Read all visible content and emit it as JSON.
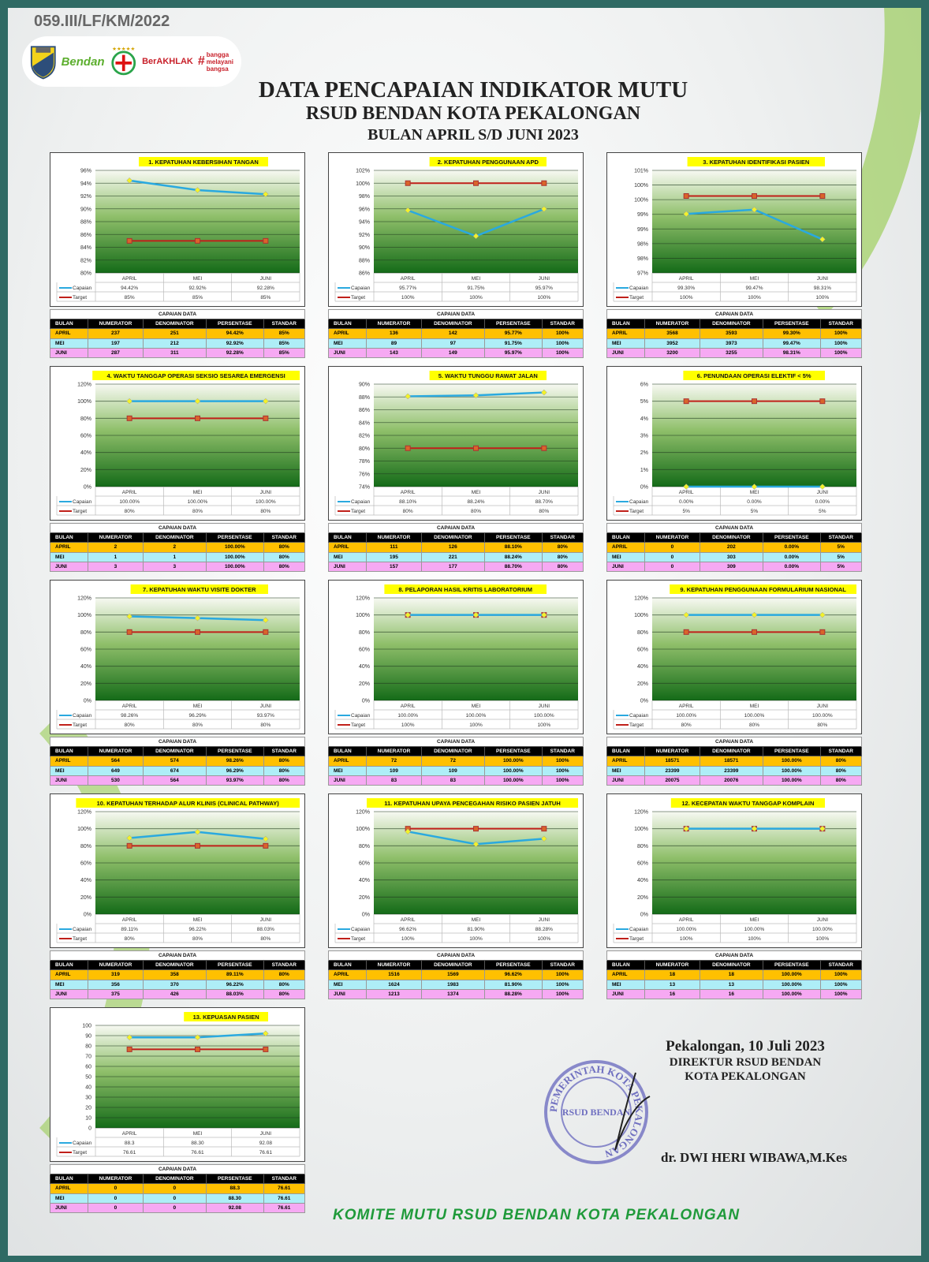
{
  "header": {
    "doc_number": "059.III/LF/KM/2022",
    "logos": [
      "Bendan Pekalongan",
      "Paripurna",
      "BerAKHLAK",
      "bangga melayani bangsa"
    ],
    "title": "DATA PENCAPAIAN INDIKATOR MUTU",
    "subtitle": "RSUD BENDAN KOTA PEKALONGAN",
    "period": "BULAN APRIL S/D JUNI 2023"
  },
  "colors": {
    "capaian": "#2aa9df",
    "target": "#c0201a",
    "marker_capaian": "#f2f22a",
    "marker_target": "#d9652a",
    "row_april": "#ffc000",
    "row_mei": "#aeeef7",
    "row_juni": "#f6a9f3",
    "frame": "#2f6a64"
  },
  "legend": {
    "capaian": "Capaian",
    "target": "Target"
  },
  "table_labels": {
    "caption": "CAPAIAN DATA",
    "headers": [
      "BULAN",
      "NUMERATOR",
      "DENOMINATOR",
      "PERSENTASE",
      "STANDAR"
    ]
  },
  "chart_data": [
    {
      "type": "line",
      "title": "1. KEPATUHAN KEBERSIHAN TANGAN",
      "categories": [
        "APRIL",
        "MEI",
        "JUNI"
      ],
      "yticks": [
        "96%",
        "94%",
        "92%",
        "90%",
        "88%",
        "86%",
        "84%",
        "82%",
        "80%"
      ],
      "ylim": [
        80,
        96
      ],
      "grid": true,
      "series": [
        {
          "name": "Capaian",
          "values": [
            94.42,
            92.92,
            92.28
          ],
          "labels": [
            "94.42%",
            "92.92%",
            "92.28%"
          ]
        },
        {
          "name": "Target",
          "values": [
            85,
            85,
            85
          ],
          "labels": [
            "85%",
            "85%",
            "85%"
          ]
        }
      ],
      "table": [
        [
          "APRIL",
          "237",
          "251",
          "94.42%",
          "85%"
        ],
        [
          "MEI",
          "197",
          "212",
          "92.92%",
          "85%"
        ],
        [
          "JUNI",
          "287",
          "311",
          "92.28%",
          "85%"
        ]
      ]
    },
    {
      "type": "line",
      "title": "2. KEPATUHAN PENGGUNAAN APD",
      "categories": [
        "APRIL",
        "MEI",
        "JUNI"
      ],
      "yticks": [
        "102%",
        "100%",
        "98%",
        "96%",
        "94%",
        "92%",
        "90%",
        "88%",
        "86%"
      ],
      "ylim": [
        86,
        102
      ],
      "grid": true,
      "series": [
        {
          "name": "Capaian",
          "values": [
            95.77,
            91.75,
            95.97
          ],
          "labels": [
            "95.77%",
            "91.75%",
            "95.97%"
          ]
        },
        {
          "name": "Target",
          "values": [
            100,
            100,
            100
          ],
          "labels": [
            "100%",
            "100%",
            "100%"
          ]
        }
      ],
      "table": [
        [
          "APRIL",
          "136",
          "142",
          "95.77%",
          "100%"
        ],
        [
          "MEI",
          "89",
          "97",
          "91.75%",
          "100%"
        ],
        [
          "JUNI",
          "143",
          "149",
          "95.97%",
          "100%"
        ]
      ]
    },
    {
      "type": "line",
      "title": "3. KEPATUHAN IDENTIFIKASI PASIEN",
      "categories": [
        "APRIL",
        "MEI",
        "JUNI"
      ],
      "yticks": [
        "101%",
        "100%",
        "100%",
        "99%",
        "99%",
        "98%",
        "98%",
        "97%"
      ],
      "ylim": [
        97,
        101
      ],
      "grid": true,
      "series": [
        {
          "name": "Capaian",
          "values": [
            99.3,
            99.47,
            98.31
          ],
          "labels": [
            "99.30%",
            "99.47%",
            "98.31%"
          ]
        },
        {
          "name": "Target",
          "values": [
            100,
            100,
            100
          ],
          "labels": [
            "100%",
            "100%",
            "100%"
          ]
        }
      ],
      "table": [
        [
          "APRIL",
          "3568",
          "3593",
          "99.30%",
          "100%"
        ],
        [
          "MEI",
          "3952",
          "3973",
          "99.47%",
          "100%"
        ],
        [
          "JUNI",
          "3200",
          "3255",
          "98.31%",
          "100%"
        ]
      ]
    },
    {
      "type": "line",
      "title": "4. WAKTU TANGGAP OPERASI SEKSIO SESAREA EMERGENSI",
      "categories": [
        "APRIL",
        "MEI",
        "JUNI"
      ],
      "yticks": [
        "120%",
        "100%",
        "80%",
        "60%",
        "40%",
        "20%",
        "0%"
      ],
      "ylim": [
        0,
        120
      ],
      "grid": true,
      "series": [
        {
          "name": "Capaian",
          "values": [
            100,
            100,
            100
          ],
          "labels": [
            "100.00%",
            "100.00%",
            "100.00%"
          ]
        },
        {
          "name": "Target",
          "values": [
            80,
            80,
            80
          ],
          "labels": [
            "80%",
            "80%",
            "80%"
          ]
        }
      ],
      "table": [
        [
          "APRIL",
          "2",
          "2",
          "100.00%",
          "80%"
        ],
        [
          "MEI",
          "1",
          "1",
          "100.00%",
          "80%"
        ],
        [
          "JUNI",
          "3",
          "3",
          "100.00%",
          "80%"
        ]
      ]
    },
    {
      "type": "line",
      "title": "5. WAKTU TUNGGU RAWAT JALAN",
      "categories": [
        "APRIL",
        "MEI",
        "JUNI"
      ],
      "yticks": [
        "90%",
        "88%",
        "86%",
        "84%",
        "82%",
        "80%",
        "78%",
        "76%",
        "74%"
      ],
      "ylim": [
        74,
        90
      ],
      "grid": true,
      "series": [
        {
          "name": "Capaian",
          "values": [
            88.1,
            88.24,
            88.7
          ],
          "labels": [
            "88.10%",
            "88.24%",
            "88.70%"
          ]
        },
        {
          "name": "Target",
          "values": [
            80,
            80,
            80
          ],
          "labels": [
            "80%",
            "80%",
            "80%"
          ]
        }
      ],
      "table": [
        [
          "APRIL",
          "111",
          "126",
          "88.10%",
          "80%"
        ],
        [
          "MEI",
          "195",
          "221",
          "88.24%",
          "80%"
        ],
        [
          "JUNI",
          "157",
          "177",
          "88.70%",
          "80%"
        ]
      ]
    },
    {
      "type": "line",
      "title": "6. PENUNDAAN OPERASI ELEKTIF < 5%",
      "categories": [
        "APRIL",
        "MEI",
        "JUNI"
      ],
      "yticks": [
        "6%",
        "5%",
        "4%",
        "3%",
        "2%",
        "1%",
        "0%"
      ],
      "ylim": [
        0,
        6
      ],
      "grid": true,
      "series": [
        {
          "name": "Capaian",
          "values": [
            0,
            0,
            0
          ],
          "labels": [
            "0.00%",
            "0.00%",
            "0.00%"
          ]
        },
        {
          "name": "Target",
          "values": [
            5,
            5,
            5
          ],
          "labels": [
            "5%",
            "5%",
            "5%"
          ]
        }
      ],
      "table": [
        [
          "APRIL",
          "0",
          "202",
          "0.00%",
          "5%"
        ],
        [
          "MEI",
          "0",
          "303",
          "0.00%",
          "5%"
        ],
        [
          "JUNI",
          "0",
          "309",
          "0.00%",
          "5%"
        ]
      ]
    },
    {
      "type": "line",
      "title": "7. KEPATUHAN WAKTU VISITE DOKTER",
      "categories": [
        "APRIL",
        "MEI",
        "JUNI"
      ],
      "yticks": [
        "120%",
        "100%",
        "80%",
        "60%",
        "40%",
        "20%",
        "0%"
      ],
      "ylim": [
        0,
        120
      ],
      "grid": true,
      "series": [
        {
          "name": "Capaian",
          "values": [
            98.26,
            96.29,
            93.97
          ],
          "labels": [
            "98.26%",
            "96.29%",
            "93.97%"
          ]
        },
        {
          "name": "Target",
          "values": [
            80,
            80,
            80
          ],
          "labels": [
            "80%",
            "80%",
            "80%"
          ]
        }
      ],
      "table": [
        [
          "APRIL",
          "564",
          "574",
          "98.26%",
          "80%"
        ],
        [
          "MEI",
          "649",
          "674",
          "96.29%",
          "80%"
        ],
        [
          "JUNI",
          "530",
          "564",
          "93.97%",
          "80%"
        ]
      ]
    },
    {
      "type": "line",
      "title": "8. PELAPORAN HASIL KRITIS LABORATORIUM",
      "categories": [
        "APRIL",
        "MEI",
        "JUNI"
      ],
      "yticks": [
        "120%",
        "100%",
        "80%",
        "60%",
        "40%",
        "20%",
        "0%"
      ],
      "ylim": [
        0,
        120
      ],
      "grid": true,
      "series": [
        {
          "name": "Capaian",
          "values": [
            100,
            100,
            100
          ],
          "labels": [
            "100.00%",
            "100.00%",
            "100.00%"
          ]
        },
        {
          "name": "Target",
          "values": [
            100,
            100,
            100
          ],
          "labels": [
            "100%",
            "100%",
            "100%"
          ]
        }
      ],
      "table": [
        [
          "APRIL",
          "72",
          "72",
          "100.00%",
          "100%"
        ],
        [
          "MEI",
          "109",
          "109",
          "100.00%",
          "100%"
        ],
        [
          "JUNI",
          "83",
          "83",
          "100.00%",
          "100%"
        ]
      ]
    },
    {
      "type": "line",
      "title": "9. KEPATUHAN PENGGUNAAN FORMULARIUM NASIONAL",
      "categories": [
        "APRIL",
        "MEI",
        "JUNI"
      ],
      "yticks": [
        "120%",
        "100%",
        "80%",
        "60%",
        "40%",
        "20%",
        "0%"
      ],
      "ylim": [
        0,
        120
      ],
      "grid": true,
      "series": [
        {
          "name": "Capaian",
          "values": [
            100,
            100,
            100
          ],
          "labels": [
            "100.00%",
            "100.00%",
            "100.00%"
          ]
        },
        {
          "name": "Target",
          "values": [
            80,
            80,
            80
          ],
          "labels": [
            "80%",
            "80%",
            "80%"
          ]
        }
      ],
      "table": [
        [
          "APRIL",
          "18571",
          "18571",
          "100.00%",
          "80%"
        ],
        [
          "MEI",
          "23399",
          "23399",
          "100.00%",
          "80%"
        ],
        [
          "JUNI",
          "20075",
          "20076",
          "100.00%",
          "80%"
        ]
      ]
    },
    {
      "type": "line",
      "title": "10. KEPATUHAN TERHADAP ALUR KLINIS (CLINICAL PATHWAY)",
      "categories": [
        "APRIL",
        "MEI",
        "JUNI"
      ],
      "yticks": [
        "120%",
        "100%",
        "80%",
        "60%",
        "40%",
        "20%",
        "0%"
      ],
      "ylim": [
        0,
        120
      ],
      "grid": true,
      "series": [
        {
          "name": "Capaian",
          "values": [
            89.11,
            96.22,
            88.03
          ],
          "labels": [
            "89.11%",
            "96.22%",
            "88.03%"
          ]
        },
        {
          "name": "Target",
          "values": [
            80,
            80,
            80
          ],
          "labels": [
            "80%",
            "80%",
            "80%"
          ]
        }
      ],
      "table": [
        [
          "APRIL",
          "319",
          "358",
          "89.11%",
          "80%"
        ],
        [
          "MEI",
          "356",
          "370",
          "96.22%",
          "80%"
        ],
        [
          "JUNI",
          "375",
          "426",
          "88.03%",
          "80%"
        ]
      ]
    },
    {
      "type": "line",
      "title": "11. KEPATUHAN UPAYA PENCEGAHAN RISIKO PASIEN JATUH",
      "categories": [
        "APRIL",
        "MEI",
        "JUNI"
      ],
      "yticks": [
        "120%",
        "100%",
        "80%",
        "60%",
        "40%",
        "20%",
        "0%"
      ],
      "ylim": [
        0,
        120
      ],
      "grid": true,
      "series": [
        {
          "name": "Capaian",
          "values": [
            96.62,
            81.9,
            88.28
          ],
          "labels": [
            "96.62%",
            "81.90%",
            "88.28%"
          ]
        },
        {
          "name": "Target",
          "values": [
            100,
            100,
            100
          ],
          "labels": [
            "100%",
            "100%",
            "100%"
          ]
        }
      ],
      "table": [
        [
          "APRIL",
          "1516",
          "1569",
          "96.62%",
          "100%"
        ],
        [
          "MEI",
          "1624",
          "1983",
          "81.90%",
          "100%"
        ],
        [
          "JUNI",
          "1213",
          "1374",
          "88.28%",
          "100%"
        ]
      ]
    },
    {
      "type": "line",
      "title": "12. KECEPATAN WAKTU TANGGAP KOMPLAIN",
      "categories": [
        "APRIL",
        "MEI",
        "JUNI"
      ],
      "yticks": [
        "120%",
        "100%",
        "80%",
        "60%",
        "40%",
        "20%",
        "0%"
      ],
      "ylim": [
        0,
        120
      ],
      "grid": true,
      "series": [
        {
          "name": "Capaian",
          "values": [
            100,
            100,
            100
          ],
          "labels": [
            "100.00%",
            "100.00%",
            "100.00%"
          ]
        },
        {
          "name": "Target",
          "values": [
            100,
            100,
            100
          ],
          "labels": [
            "100%",
            "100%",
            "100%"
          ]
        }
      ],
      "table": [
        [
          "APRIL",
          "18",
          "18",
          "100.00%",
          "100%"
        ],
        [
          "MEI",
          "13",
          "13",
          "100.00%",
          "100%"
        ],
        [
          "JUNI",
          "16",
          "16",
          "100.00%",
          "100%"
        ]
      ]
    },
    {
      "type": "line",
      "title": "13. KEPUASAN PASIEN",
      "categories": [
        "APRIL",
        "MEI",
        "JUNI"
      ],
      "yticks": [
        "100",
        "90",
        "80",
        "70",
        "60",
        "50",
        "40",
        "30",
        "20",
        "10",
        "0"
      ],
      "ylim": [
        0,
        100
      ],
      "grid": true,
      "series": [
        {
          "name": "Capaian",
          "values": [
            88.3,
            88.3,
            92.08
          ],
          "labels": [
            "88.3",
            "88.30",
            "92.08"
          ]
        },
        {
          "name": "Target",
          "values": [
            76.61,
            76.61,
            76.61
          ],
          "labels": [
            "76.61",
            "76.61",
            "76.61"
          ]
        }
      ],
      "table": [
        [
          "APRIL",
          "0",
          "0",
          "88.3",
          "76.61"
        ],
        [
          "MEI",
          "0",
          "0",
          "88.30",
          "76.61"
        ],
        [
          "JUNI",
          "0",
          "0",
          "92.08",
          "76.61"
        ]
      ]
    }
  ],
  "signature": {
    "place_date": "Pekalongan, 10 Juli 2023",
    "position": "DIREKTUR RSUD BENDAN",
    "org": "KOTA PEKALONGAN",
    "name": "dr. DWI HERI WIBAWA,M.Kes",
    "stamp_ring": "PEMERINTAH KOTA PEKALONGAN",
    "stamp_center": "RSUD BENDAN"
  },
  "footer": "KOMITE MUTU RSUD BENDAN KOTA PEKALONGAN"
}
